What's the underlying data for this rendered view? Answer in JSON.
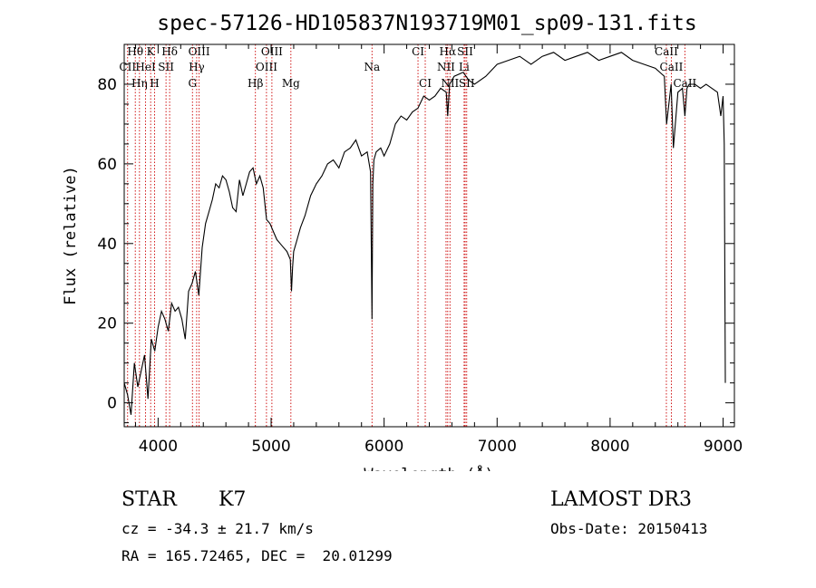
{
  "chart_data": {
    "type": "line",
    "title": "spec-57126-HD105837N193719M01_sp09-131.fits",
    "xlabel": "Wavelength (Å)",
    "ylabel": "Flux (relative)",
    "xlim": [
      3700,
      9100
    ],
    "ylim": [
      -6,
      90
    ],
    "xticks": [
      4000,
      5000,
      6000,
      7000,
      8000,
      9000
    ],
    "yticks": [
      0,
      20,
      40,
      60,
      80
    ],
    "grid": false,
    "series": [
      {
        "name": "flux",
        "x": [
          3700,
          3730,
          3760,
          3790,
          3820,
          3850,
          3880,
          3910,
          3940,
          3970,
          4000,
          4030,
          4060,
          4090,
          4120,
          4150,
          4180,
          4210,
          4240,
          4270,
          4300,
          4330,
          4360,
          4390,
          4420,
          4450,
          4480,
          4510,
          4540,
          4570,
          4600,
          4630,
          4660,
          4690,
          4720,
          4750,
          4780,
          4810,
          4840,
          4870,
          4900,
          4930,
          4960,
          4990,
          5020,
          5050,
          5080,
          5110,
          5140,
          5170,
          5180,
          5190,
          5200,
          5230,
          5260,
          5300,
          5350,
          5400,
          5450,
          5500,
          5550,
          5600,
          5650,
          5700,
          5750,
          5800,
          5850,
          5880,
          5893,
          5900,
          5910,
          5930,
          5970,
          6000,
          6050,
          6100,
          6150,
          6200,
          6250,
          6300,
          6350,
          6400,
          6450,
          6500,
          6550,
          6563,
          6580,
          6620,
          6700,
          6750,
          6800,
          6900,
          7000,
          7100,
          7200,
          7300,
          7400,
          7500,
          7600,
          7700,
          7800,
          7900,
          8000,
          8100,
          8200,
          8300,
          8400,
          8480,
          8500,
          8540,
          8560,
          8600,
          8640,
          8662,
          8680,
          8700,
          8750,
          8800,
          8850,
          8900,
          8950,
          8980,
          9000,
          9010,
          9020
        ],
        "y": [
          5,
          2,
          -3,
          10,
          4,
          8,
          12,
          1,
          16,
          13,
          19,
          23,
          21,
          18,
          25,
          23,
          24,
          21,
          16,
          28,
          30,
          33,
          27,
          39,
          45,
          48,
          51,
          55,
          54,
          57,
          56,
          53,
          49,
          48,
          56,
          52,
          55,
          58,
          59,
          55,
          57,
          54,
          46,
          45,
          43,
          41,
          40,
          39,
          38,
          36,
          28,
          34,
          38,
          41,
          44,
          47,
          52,
          55,
          57,
          60,
          61,
          59,
          63,
          64,
          66,
          62,
          63,
          58,
          21,
          55,
          61,
          63,
          64,
          62,
          65,
          70,
          72,
          71,
          73,
          74,
          77,
          76,
          77,
          79,
          78,
          72,
          80,
          82,
          83,
          81,
          80,
          82,
          85,
          86,
          87,
          85,
          87,
          88,
          86,
          87,
          88,
          86,
          87,
          88,
          86,
          85,
          84,
          82,
          70,
          80,
          64,
          78,
          79,
          72,
          79,
          80,
          80,
          79,
          80,
          79,
          78,
          72,
          77,
          65,
          5
        ]
      }
    ],
    "reference_lines": [
      {
        "label": "CII",
        "x": 3730,
        "row": 2
      },
      {
        "label": "Hθ",
        "x": 3798,
        "row": 1
      },
      {
        "label": "Hη",
        "x": 3835,
        "row": 3
      },
      {
        "label": "HeI",
        "x": 3889,
        "row": 2
      },
      {
        "label": "K",
        "x": 3934,
        "row": 1
      },
      {
        "label": "H",
        "x": 3969,
        "row": 3
      },
      {
        "label": "SII",
        "x": 4070,
        "row": 2
      },
      {
        "label": "Hδ",
        "x": 4102,
        "row": 1
      },
      {
        "label": "G",
        "x": 4304,
        "row": 3
      },
      {
        "label": "Hγ",
        "x": 4341,
        "row": 2
      },
      {
        "label": "OIII",
        "x": 4363,
        "row": 1
      },
      {
        "label": "Hβ",
        "x": 4861,
        "row": 3
      },
      {
        "label": "OIII",
        "x": 4959,
        "row": 2
      },
      {
        "label": "OIII",
        "x": 5007,
        "row": 1
      },
      {
        "label": "Mg",
        "x": 5175,
        "row": 3
      },
      {
        "label": "Na",
        "x": 5893,
        "row": 2
      },
      {
        "label": "CI",
        "x": 6300,
        "row": 1
      },
      {
        "label": "CI",
        "x": 6364,
        "row": 3
      },
      {
        "label": "NΙΙ",
        "x": 6548,
        "row": 2
      },
      {
        "label": "Hα",
        "x": 6563,
        "row": 1
      },
      {
        "label": "NII",
        "x": 6583,
        "row": 3
      },
      {
        "label": "Li",
        "x": 6708,
        "row": 2
      },
      {
        "label": "SII",
        "x": 6717,
        "row": 1
      },
      {
        "label": "SII",
        "x": 6731,
        "row": 3
      },
      {
        "label": "CaII",
        "x": 8498,
        "row": 1
      },
      {
        "label": "CaII",
        "x": 8542,
        "row": 2
      },
      {
        "label": "CaII",
        "x": 8662,
        "row": 3
      }
    ]
  },
  "info": {
    "obj_class": "STAR",
    "subclass": "K7",
    "survey": "LAMOST DR3",
    "cz": "cz = -34.3 ± 21.7 km/s",
    "obs_date": "Obs-Date: 20150413",
    "radec": "RA = 165.72465, DEC =  20.01299"
  },
  "colors": {
    "spectrum": "#000000",
    "reference_line": "#cc0000",
    "axes": "#000000"
  }
}
